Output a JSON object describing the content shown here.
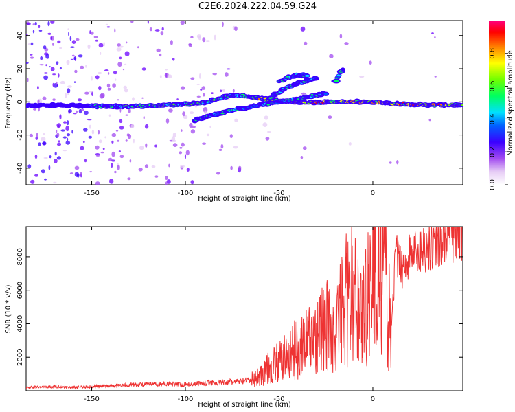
{
  "title": "C2E6.2024.222.04.59.G24",
  "chart_data": [
    {
      "type": "heatmap",
      "xlabel": "Height of straight line (km)",
      "ylabel": "Frequency (Hz)",
      "xlim": [
        -185,
        48
      ],
      "ylim": [
        -50,
        49
      ],
      "xticks": [
        -150,
        -100,
        -50,
        0
      ],
      "yticks": [
        -40,
        -20,
        0,
        20,
        40
      ],
      "colorbar": {
        "label": "Normalized spectral amplitude",
        "range": [
          0,
          1
        ],
        "ticks": [
          "0.0",
          "0.2",
          "0.4",
          "0.6",
          "0.8"
        ],
        "colormap": "white-purple-blue-cyan-green-yellow-orange-red-magenta"
      },
      "traces": [
        {
          "name": "main",
          "x": [
            -185,
            -150,
            -130,
            -110,
            -100,
            -90,
            -80,
            -70,
            -60,
            -50,
            -40,
            -30,
            -20,
            -10,
            0,
            10,
            20,
            30,
            48
          ],
          "y": [
            -2,
            -2.5,
            -3,
            -2,
            -1.5,
            -0.5,
            3,
            4,
            2,
            0.5,
            0,
            -0.5,
            0,
            0,
            0,
            -1,
            -1.5,
            -2,
            -2
          ]
        },
        {
          "name": "lower-branch",
          "x": [
            -95,
            -85,
            -75,
            -65,
            -55,
            -45,
            -35,
            -25
          ],
          "y": [
            -11,
            -8,
            -5,
            -3,
            -1,
            1,
            3,
            5
          ]
        },
        {
          "name": "upper-branch",
          "x": [
            -55,
            -50,
            -45,
            -40,
            -35,
            -30
          ],
          "y": [
            2,
            6,
            9,
            11,
            13,
            14
          ]
        },
        {
          "name": "upper-branch-2",
          "x": [
            -50,
            -45,
            -40,
            -35
          ],
          "y": [
            12,
            15,
            16,
            16
          ]
        },
        {
          "name": "spur",
          "x": [
            -20,
            -18,
            -16
          ],
          "y": [
            12,
            16,
            20
          ]
        }
      ],
      "grid": false
    },
    {
      "type": "line",
      "xlabel": "Height of straight line (km)",
      "ylabel": "SNR (10 * v/v)",
      "xlim": [
        -185,
        48
      ],
      "ylim": [
        0,
        9800
      ],
      "xticks": [
        -150,
        -100,
        -50,
        0
      ],
      "yticks": [
        2000,
        4000,
        6000,
        8000
      ],
      "color": "#ee3333",
      "series": [
        {
          "x": [
            -185,
            -170,
            -160,
            -150,
            -140,
            -130,
            -120,
            -110,
            -100,
            -90,
            -80,
            -70,
            -65,
            -60,
            -55,
            -50,
            -45,
            -40,
            -35,
            -30,
            -25,
            -20,
            -18,
            -15,
            -12,
            -10,
            -8,
            -5,
            -2,
            0,
            3,
            6,
            8,
            10,
            12,
            14,
            16,
            20,
            25,
            30,
            35,
            40,
            45,
            48
          ],
          "y": [
            200,
            250,
            200,
            250,
            300,
            350,
            380,
            420,
            380,
            450,
            500,
            550,
            620,
            900,
            1400,
            1700,
            2100,
            2600,
            2900,
            3400,
            3800,
            3600,
            4500,
            5200,
            5800,
            5500,
            5100,
            4600,
            6200,
            7000,
            7400,
            7100,
            4900,
            3500,
            8200,
            7600,
            7400,
            8100,
            8400,
            8700,
            8900,
            9200,
            9300,
            9400
          ]
        }
      ],
      "grid": false
    }
  ]
}
